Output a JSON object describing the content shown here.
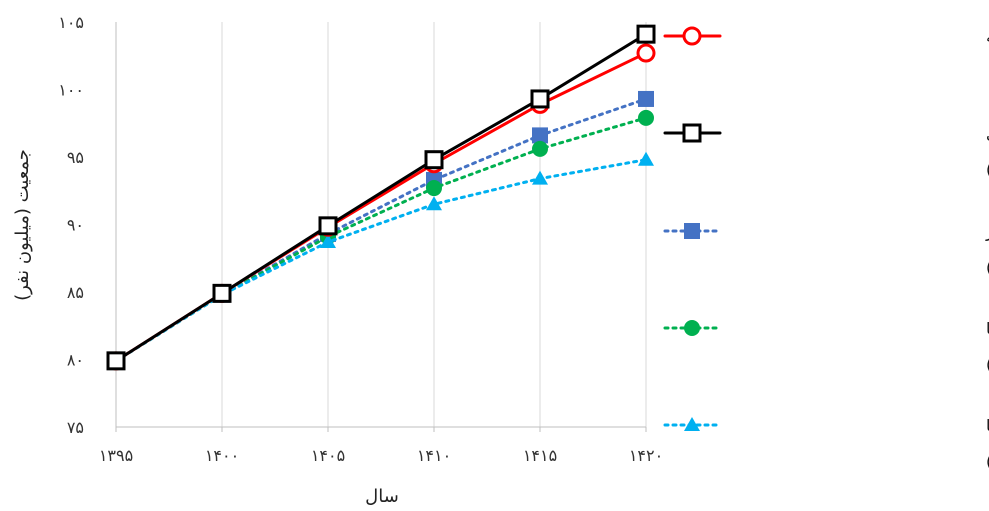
{
  "chart_data": {
    "type": "line",
    "x": [
      "۱۳۹۵",
      "۱۴۰۰",
      "۱۴۰۵",
      "۱۴۱۰",
      "۱۴۱۵",
      "۱۴۲۰"
    ],
    "xlabel": "سال",
    "ylabel": "جمعیت (میلیون نفر)",
    "ylim": [
      75,
      105
    ],
    "yticks": [
      75,
      80,
      85,
      90,
      95,
      100,
      105
    ],
    "ytick_labels": [
      "۷۵",
      "۸۰",
      "۸۵",
      "۹۰",
      "۹۵",
      "۱۰۰",
      "۱۰۵"
    ],
    "grid": "vertical",
    "legend_position": "right",
    "series": [
      {
        "name": "این مطالعه",
        "legend_lines": [
          "این مطالعه"
        ],
        "values": [
          79.9,
          84.9,
          89.8,
          94.5,
          98.9,
          102.7
        ],
        "color": "#ff0000",
        "dash": "solid",
        "marker": "circle-open"
      },
      {
        "name": "مرکز آمار ایران (افزایش باروری نسبت به سطح فعلی)",
        "legend_lines": [
          "مرکز آمار ایران (افزایش باروری",
          "نسبت به سطح فعلی)"
        ],
        "values": [
          79.9,
          84.9,
          89.9,
          94.8,
          99.3,
          104.1
        ],
        "color": "#000000",
        "dash": "solid",
        "marker": "square-open"
      },
      {
        "name": "مرکز آمار ایران (ثبات باروری در سطح فعلی)",
        "legend_lines": [
          "مرکز آمار ایران (ثبات باروری در",
          "سطح فعلی)"
        ],
        "values": [
          79.9,
          84.8,
          89.3,
          93.3,
          96.6,
          99.3
        ],
        "color": "#4472c4",
        "dash": "dotted",
        "marker": "square"
      },
      {
        "name": "مرکز آمار ایران (کاهش باروری با شیب ملایم)",
        "legend_lines": [
          "مرکز آمار ایران (کاهش باروری با",
          "شیب ملایم)"
        ],
        "values": [
          79.9,
          84.8,
          89.1,
          92.7,
          95.6,
          97.9
        ],
        "color": "#00b050",
        "dash": "dotted",
        "marker": "circle"
      },
      {
        "name": "مرکز آمار ایران (کاهش  باروری با شیب تند)",
        "legend_lines": [
          "مرکز آمار ایران (کاهش  باروری با",
          "شیب تند)"
        ],
        "values": [
          79.9,
          84.8,
          88.7,
          91.5,
          93.4,
          94.8
        ],
        "color": "#00b0f0",
        "dash": "dotted",
        "marker": "triangle"
      }
    ]
  }
}
